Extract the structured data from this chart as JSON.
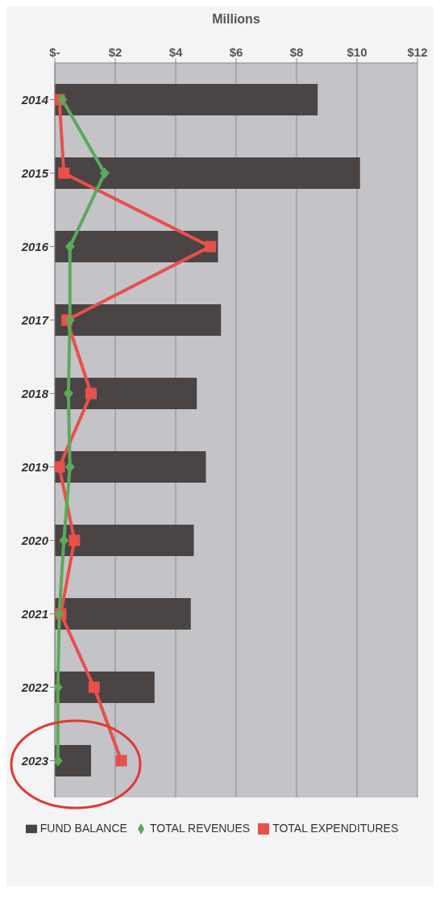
{
  "chart_data": {
    "type": "bar",
    "orientation": "horizontal",
    "xlabel": "Millions",
    "categories": [
      "2014",
      "2015",
      "2016",
      "2017",
      "2018",
      "2019",
      "2020",
      "2021",
      "2022",
      "2023"
    ],
    "series": [
      {
        "name": "FUND BALANCE",
        "color": "#4a4444",
        "values": [
          8.7,
          10.1,
          5.4,
          5.5,
          4.7,
          5.0,
          4.6,
          4.5,
          3.3,
          1.2
        ]
      },
      {
        "name": "TOTAL REVENUES",
        "type": "line",
        "marker": "diamond",
        "color": "#5aaa5a",
        "values": [
          0.25,
          1.65,
          0.5,
          0.5,
          0.45,
          0.5,
          0.3,
          0.15,
          0.1,
          0.1
        ]
      },
      {
        "name": "TOTAL EXPENDITURES",
        "type": "line",
        "marker": "square",
        "color": "#e8504a",
        "values": [
          0.15,
          0.3,
          5.15,
          0.4,
          1.2,
          0.15,
          0.65,
          0.2,
          1.3,
          2.2
        ]
      }
    ],
    "xlim": [
      0,
      12
    ],
    "xticks": [
      {
        "value": 0,
        "label": "$-"
      },
      {
        "value": 2,
        "label": "$2"
      },
      {
        "value": 4,
        "label": "$4"
      },
      {
        "value": 6,
        "label": "$6"
      },
      {
        "value": 8,
        "label": "$8"
      },
      {
        "value": 10,
        "label": "$10"
      },
      {
        "value": 12,
        "label": "$12"
      }
    ],
    "grid": "x",
    "legend": "bottom"
  }
}
